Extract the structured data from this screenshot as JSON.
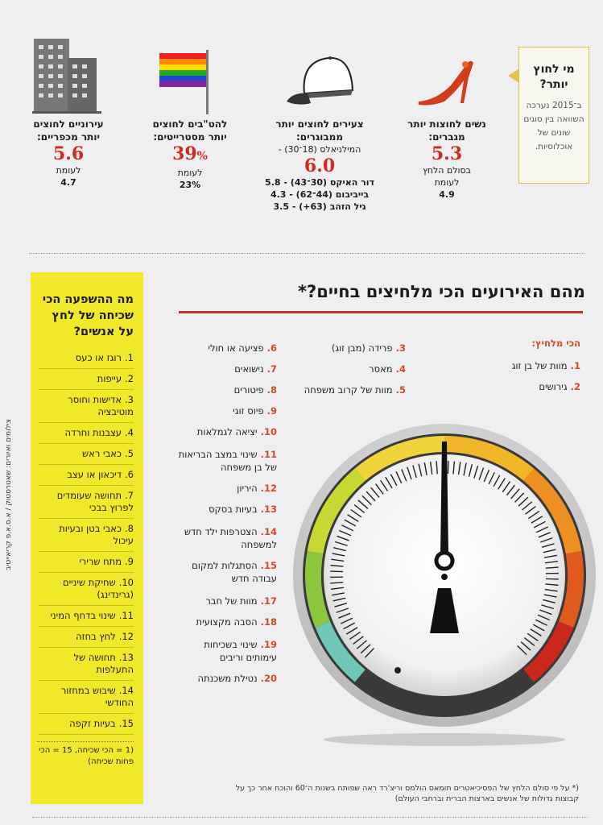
{
  "callout": {
    "title": "מי לחוץ יותר?",
    "text": "ב־2015 נערכה השוואה בין סוגים שונים של אוכלוסיות."
  },
  "women": {
    "head": "נשים לחוצות יותר מגברים:",
    "value": "5.3",
    "l1": "בסולם הלחץ",
    "l2": "לעומת",
    "cmp": "4.9"
  },
  "young": {
    "head": "צעירים לחוצים יותר ממבוגרים:",
    "l1": "המילניאלס (18־30) -",
    "value": "6.0",
    "rows": [
      "דור האיקס (30־43) - 5.8",
      "בייביבום (44־62) - 4.3",
      "גיל הזהב (63+) - 3.5"
    ]
  },
  "lgbt": {
    "head": "להט\"בים לחוצים יותר מסטרייטים:",
    "value": "39",
    "pct": "%",
    "l2": "לעומת",
    "cmp": "23%"
  },
  "urban": {
    "head": "עירוניים לחוצים יותר מכפריים:",
    "value": "5.6",
    "l2": "לעומת",
    "cmp": "4.7"
  },
  "headline": "מהם האירועים הכי מלחיצים בחיים?*",
  "most_label": "הכי מלחיץ:",
  "events": [
    {
      "n": "1.",
      "t": "מוות של בן זוג"
    },
    {
      "n": "2.",
      "t": "גירושים"
    },
    {
      "n": "3.",
      "t": "פרידה (מבן זוג)"
    },
    {
      "n": "4.",
      "t": "מאסר"
    },
    {
      "n": "5.",
      "t": "מוות של קרוב משפחה"
    },
    {
      "n": "6.",
      "t": "פציעה או חולי"
    },
    {
      "n": "7.",
      "t": "נישואים"
    },
    {
      "n": "8.",
      "t": "פיטורים"
    },
    {
      "n": "9.",
      "t": "פיוס זוגי"
    },
    {
      "n": "10.",
      "t": "יציאה לגמלאות"
    },
    {
      "n": "11.",
      "t": "שינוי במצב הבריאות של בן משפחה"
    },
    {
      "n": "12.",
      "t": "היריון"
    },
    {
      "n": "13.",
      "t": "בעיות בסקס"
    },
    {
      "n": "14.",
      "t": "הצטרפות ילד חדש למשפחה"
    },
    {
      "n": "15.",
      "t": "הסתגלות למקום עבודה חדש"
    },
    {
      "n": "17.",
      "t": "מוות של חבר"
    },
    {
      "n": "18.",
      "t": "הסבה מקצועית"
    },
    {
      "n": "19.",
      "t": "שינוי בשכיחות עימותים וריבים"
    },
    {
      "n": "20.",
      "t": "נטילת משכנתה"
    }
  ],
  "yellow": {
    "title": "מה ההשפעה הכי שכיחה של לחץ על אנשים?",
    "items": [
      {
        "n": "1.",
        "t": "רוגז או כעס"
      },
      {
        "n": "2.",
        "t": "עייפות"
      },
      {
        "n": "3.",
        "t": "אדישות וחוסר מוטיבציה"
      },
      {
        "n": "4.",
        "t": "עצבנות וחרדה"
      },
      {
        "n": "5.",
        "t": "כאבי ראש"
      },
      {
        "n": "6.",
        "t": "דיכאון או עצב"
      },
      {
        "n": "7.",
        "t": "תחושה שעומדים לפרוץ בבכי"
      },
      {
        "n": "8.",
        "t": "כאבי בטן ובעיות עיכול"
      },
      {
        "n": "9.",
        "t": "מתח שרירי"
      },
      {
        "n": "10.",
        "t": "שחיקת שיניים (גרינדינג)"
      },
      {
        "n": "11.",
        "t": "שינוי בדחף המיני"
      },
      {
        "n": "12.",
        "t": "לחץ בחזה"
      },
      {
        "n": "13.",
        "t": "תחושה של התעלפות"
      },
      {
        "n": "14.",
        "t": "שיבוש במחזור החודשי"
      },
      {
        "n": "15.",
        "t": "בעיות זקפה"
      }
    ],
    "foot": "(1 = הכי שכיחה, 15 = הכי פחות שכיחה)"
  },
  "credit": "צילומים ואיורים: שאטרסטוק / א.ס.א.פ קריאייטיב",
  "footnote": "(* על פי סולם הלחץ של הפסיכיאטרים תומאס הולמס וריצ'רד ראה שפותח בשנות ה־60 והוכח אחר כך על קבוצות גדולות של אנשים בארצות הברית וברחבי העולם)",
  "colors": {
    "accent": "#d12a22",
    "yellow": "#f2e82a"
  }
}
